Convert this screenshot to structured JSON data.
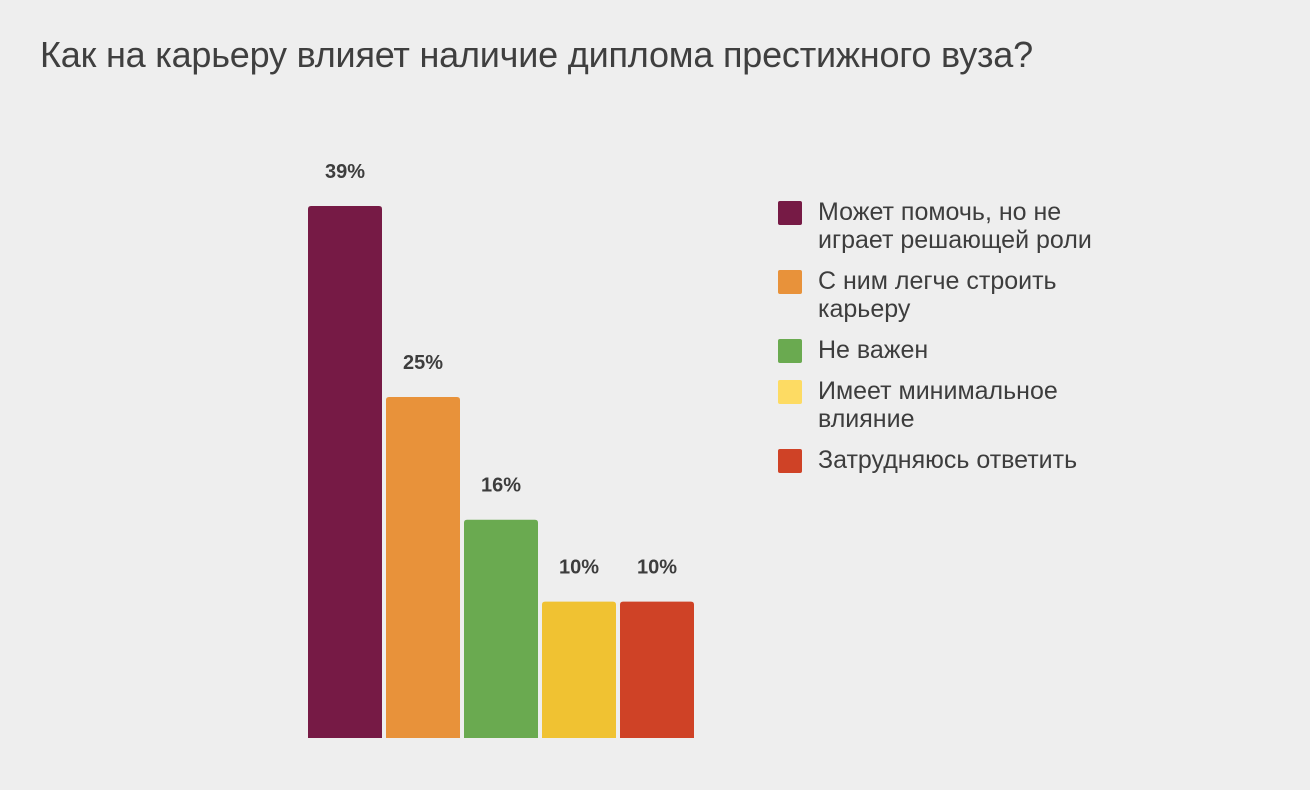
{
  "chart_data": {
    "type": "bar",
    "title": "Как на карьеру влияет наличие диплома престижного вуза?",
    "xlabel": "",
    "ylabel": "",
    "ylim": [
      0,
      39
    ],
    "grid": false,
    "legend_position": "right",
    "value_suffix": "%",
    "categories": [
      "Может помочь, но не играет решающей роли",
      "С ним легче строить карьеру",
      "Не важен",
      "Имеет минимальное влияние",
      "Затрудняюсь ответить"
    ],
    "values": [
      39,
      25,
      16,
      10,
      10
    ],
    "data_labels": [
      "39%",
      "25%",
      "16%",
      "10%",
      "10%"
    ],
    "bar_colors": [
      "#761a45",
      "#e8923a",
      "#6aaa50",
      "#f0c232",
      "#cf4226"
    ],
    "legend": [
      {
        "label": "Может помочь, но не играет решающей роли",
        "color": "#761a45"
      },
      {
        "label": "С ним легче строить карьеру",
        "color": "#e8923a"
      },
      {
        "label": "Не важен",
        "color": "#6aaa50"
      },
      {
        "label": "Имеет минимальное влияние",
        "color": "#fddb63"
      },
      {
        "label": "Затрудняюсь ответить",
        "color": "#cf4226"
      }
    ]
  }
}
